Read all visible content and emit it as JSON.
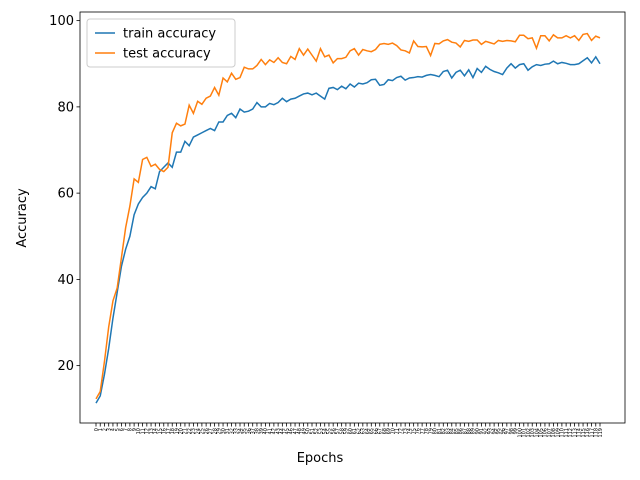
{
  "chart_data": {
    "type": "line",
    "x_label": "Epochs",
    "y_label": "Accuracy",
    "categories": [
      "0",
      "1",
      "2",
      "3",
      "4",
      "5",
      "6",
      "7",
      "8",
      "9",
      "10",
      "11",
      "12",
      "13",
      "14",
      "15",
      "16",
      "17",
      "18",
      "19",
      "20",
      "21",
      "22",
      "23",
      "24",
      "25",
      "26",
      "27",
      "28",
      "29",
      "30",
      "31",
      "32",
      "33",
      "34",
      "35",
      "36",
      "37",
      "38",
      "39",
      "40",
      "41",
      "42",
      "43",
      "44",
      "45",
      "46",
      "47",
      "48",
      "49",
      "50",
      "51",
      "52",
      "53",
      "54",
      "55",
      "56",
      "57",
      "58",
      "59",
      "60",
      "61",
      "62",
      "63",
      "64",
      "65",
      "66",
      "67",
      "68",
      "69",
      "70",
      "71",
      "72",
      "73",
      "74",
      "75",
      "76",
      "77",
      "78",
      "79",
      "80",
      "81",
      "82",
      "83",
      "84",
      "85",
      "86",
      "87",
      "88",
      "89",
      "90",
      "91",
      "92",
      "93",
      "94",
      "95",
      "96",
      "97",
      "98",
      "99",
      "100",
      "101",
      "102",
      "103",
      "104",
      "105",
      "106",
      "107",
      "108",
      "109",
      "110",
      "111",
      "112",
      "113",
      "114",
      "115",
      "116",
      "117",
      "118",
      "119"
    ],
    "series": [
      {
        "name": "train accuracy",
        "color": "#1f77b4",
        "values": [
          11.3,
          13,
          18,
          24,
          31,
          37,
          43,
          47,
          50,
          55,
          57.5,
          59,
          60,
          61.5,
          61,
          65,
          66,
          67,
          66,
          69.5,
          69.5,
          72,
          71,
          73,
          73.5,
          74,
          74.5,
          75,
          74.5,
          76.5,
          76.5,
          78,
          78.5,
          77.5,
          79.5,
          78.8,
          79,
          79.5,
          81,
          80,
          80,
          80.8,
          80.5,
          81,
          82,
          81.2,
          81.8,
          82,
          82.5,
          83,
          83.2,
          82.8,
          83.2,
          82.5,
          81.8,
          84.3,
          84.5,
          84,
          84.8,
          84.2,
          85.3,
          84.6,
          85.5,
          85.3,
          85.6,
          86.3,
          86.4,
          85,
          85.2,
          86.3,
          86.1,
          86.8,
          87.1,
          86.2,
          86.7,
          86.8,
          87,
          86.9,
          87.3,
          87.5,
          87.3,
          87,
          88.2,
          88.5,
          86.7,
          88,
          88.5,
          87.2,
          88.6,
          86.8,
          88.9,
          88,
          89.4,
          88.7,
          88.2,
          87.9,
          87.5,
          89,
          90,
          89,
          89.8,
          90,
          88.5,
          89.3,
          89.8,
          89.6,
          89.9,
          90,
          90.6,
          90,
          90.3,
          90.1,
          89.8,
          89.8,
          90,
          90.7,
          91.4,
          90.2,
          91.6,
          90
        ]
      },
      {
        "name": "test accuracy",
        "color": "#ff7f0e",
        "values": [
          12.3,
          14,
          21,
          29,
          35,
          38,
          45,
          52,
          57,
          63.3,
          62.5,
          67.8,
          68.3,
          66.2,
          66.7,
          65.5,
          65,
          66,
          74,
          76.2,
          75.6,
          76,
          80.4,
          78.5,
          81.3,
          80.6,
          82,
          82.5,
          84.5,
          82.7,
          86.7,
          85.8,
          87.8,
          86.4,
          86.8,
          89.2,
          88.8,
          88.8,
          89.6,
          91,
          89.8,
          90.9,
          90.3,
          91.4,
          90.3,
          90,
          91.7,
          91,
          93.5,
          92,
          93.4,
          92,
          90.6,
          93.5,
          91.6,
          92,
          90.2,
          91.2,
          91.2,
          91.5,
          93,
          93.5,
          92,
          93.3,
          93,
          92.8,
          93.3,
          94.5,
          94.7,
          94.5,
          94.8,
          94.2,
          93.2,
          93,
          92.5,
          95.3,
          94,
          93.9,
          94,
          91.9,
          94.7,
          94.6,
          95.3,
          95.6,
          95,
          94.8,
          93.9,
          95.4,
          95.2,
          95.5,
          95.5,
          94.5,
          95.2,
          94.9,
          94.6,
          95.4,
          95.2,
          95.4,
          95.3,
          95.1,
          96.6,
          96.6,
          95.8,
          96,
          93.6,
          96.5,
          96.5,
          95.3,
          96.7,
          96,
          96,
          96.5,
          96,
          96.5,
          95.4,
          96.8,
          97,
          95.4,
          96.4,
          96
        ]
      }
    ],
    "ylim": [
      6.7,
      102
    ],
    "yticks": [
      20,
      40,
      60,
      80,
      100
    ],
    "legend": "upper left"
  }
}
